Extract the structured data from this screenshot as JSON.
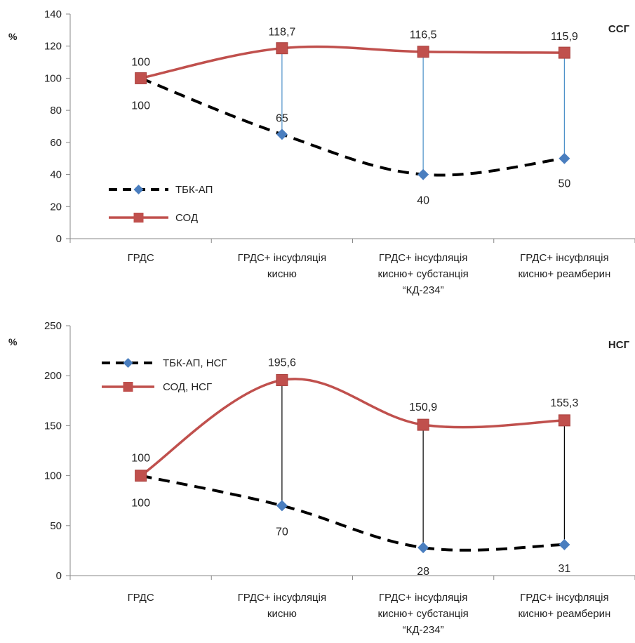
{
  "chart_data": [
    {
      "type": "line",
      "unit_label": "%",
      "corner_label": "ССГ",
      "categories": [
        [
          "ГРДС"
        ],
        [
          "ГРДС+ інсуфляція",
          "кисню"
        ],
        [
          "ГРДС+ інсуфляція",
          "кисню+ субстанція",
          "“КД-234”"
        ],
        [
          "ГРДС+ інсуфляція",
          "кисню+ реамберин"
        ]
      ],
      "series": [
        {
          "name": "ТБК-АП",
          "values": [
            100,
            65,
            40,
            50
          ],
          "labels": [
            "100",
            "65",
            "40",
            "50"
          ],
          "color": "#000000",
          "marker": "diamond",
          "marker_color": "#4a7ebf",
          "line_style": "dashed"
        },
        {
          "name": "СОД",
          "values": [
            100,
            118.7,
            116.5,
            115.9
          ],
          "labels": [
            "100",
            "118,7",
            "116,5",
            "115,9"
          ],
          "color": "#c0504d",
          "marker": "square",
          "line_style": "solid"
        }
      ],
      "drop_line_color": "#4a90c8",
      "ylim": [
        0,
        140
      ],
      "yticks": [
        "0",
        "20",
        "40",
        "60",
        "80",
        "100",
        "120",
        "140"
      ],
      "grid": false,
      "legend": "left"
    },
    {
      "type": "line",
      "unit_label": "%",
      "corner_label": "НСГ",
      "categories": [
        [
          "ГРДС"
        ],
        [
          "ГРДС+ інсуфляція",
          "кисню"
        ],
        [
          "ГРДС+ інсуфляція",
          "кисню+ субстанція",
          "“КД-234”"
        ],
        [
          "ГРДС+ інсуфляція",
          "кисню+ реамберин"
        ]
      ],
      "series": [
        {
          "name": "ТБК-АП, НСГ",
          "values": [
            100,
            70,
            28,
            31
          ],
          "labels": [
            "100",
            "70",
            "28",
            "31"
          ],
          "color": "#000000",
          "marker": "diamond",
          "marker_color": "#4a7ebf",
          "line_style": "dashed"
        },
        {
          "name": "СОД, НСГ",
          "values": [
            100,
            195.6,
            150.9,
            155.3
          ],
          "labels": [
            "100",
            "195,6",
            "150,9",
            "155,3"
          ],
          "color": "#c0504d",
          "marker": "square",
          "line_style": "solid"
        }
      ],
      "drop_line_color": "#000000",
      "ylim": [
        0,
        250
      ],
      "yticks": [
        "0",
        "50",
        "100",
        "150",
        "200",
        "250"
      ],
      "grid": false,
      "legend": "top-left"
    }
  ]
}
